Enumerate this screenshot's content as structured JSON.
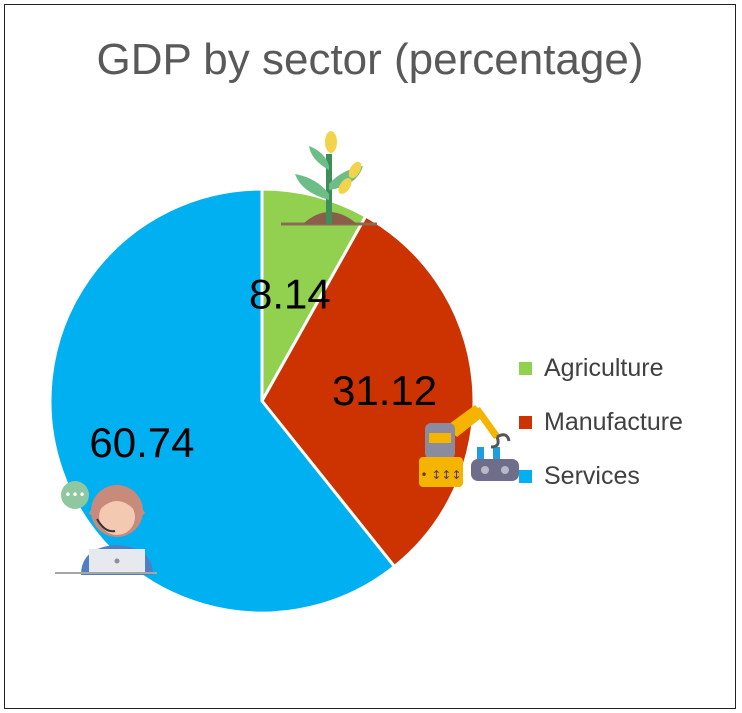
{
  "chart_data": {
    "type": "pie",
    "title": "GDP by sector (percentage)",
    "slices": [
      {
        "label": "Agriculture",
        "value": 8.14,
        "display": "8.14",
        "color": "#92D050",
        "icon": "plant-icon"
      },
      {
        "label": "Manufacture",
        "value": 31.12,
        "display": "31.12",
        "color": "#CC3300",
        "icon": "robot-arm-icon"
      },
      {
        "label": "Services",
        "value": 60.74,
        "display": "60.74",
        "color": "#00B0F0",
        "icon": "support-agent-icon"
      }
    ],
    "legend_position": "right",
    "start_angle": "top, clockwise"
  }
}
